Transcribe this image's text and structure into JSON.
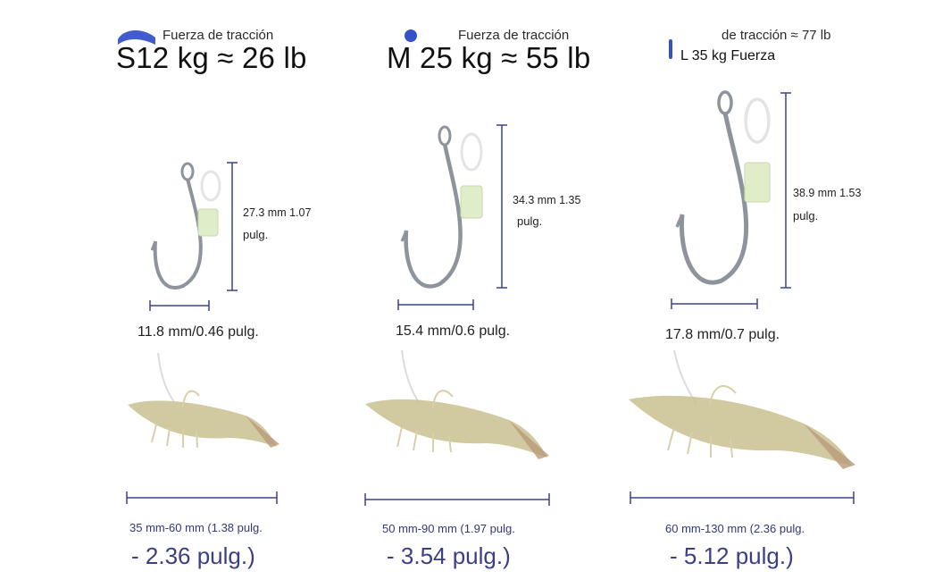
{
  "columns": [
    {
      "pull_label": "Fuerza de tracción",
      "title": "S12 kg ≈ 26 lb",
      "height_line1": "27.3 mm 1.07",
      "height_line2": "pulg.",
      "hook_width": "11.8 mm/0.46 pulg.",
      "bait_range_top": "35 mm-60 mm (1.38 pulg.",
      "bait_range_bottom": "- 2.36 pulg.)"
    },
    {
      "pull_label": "Fuerza de tracción",
      "title": "M 25 kg ≈ 55 lb",
      "height_line1": "34.3 mm 1.35",
      "height_line2": "pulg.",
      "hook_width": "15.4 mm/0.6 pulg.",
      "bait_range_top": "50 mm-90 mm (1.97 pulg.",
      "bait_range_bottom": "- 3.54 pulg.)"
    },
    {
      "pull_label": "de tracción ≈ 77 lb",
      "title": "L 35 kg Fuerza",
      "height_line1": "38.9 mm 1.53",
      "height_line2": "pulg.",
      "hook_width": "17.8 mm/0.7 pulg.",
      "bait_range_top": "60 mm-130 mm (2.36 pulg.",
      "bait_range_bottom": "- 5.12 pulg.)"
    }
  ],
  "colors": {
    "dimension_line": "#3b428a",
    "brand_blob": "#1f3fc4",
    "hook_steel": "#8e949b",
    "hook_clip": "#dfeec9",
    "shrimp_body": "#c9c08e"
  }
}
